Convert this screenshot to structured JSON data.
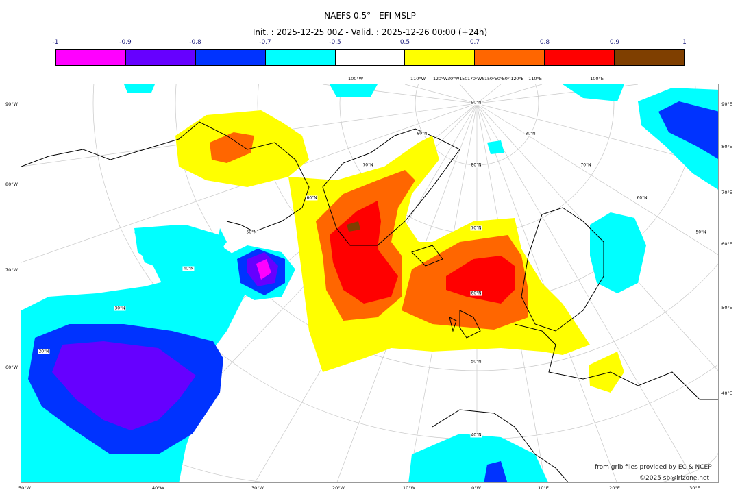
{
  "title": "NAEFS 0.5° - EFI MSLP",
  "subtitle": "Init. : 2025-12-25 00Z - Valid. : 2025-12-26 00:00 (+24h)",
  "colorbar": {
    "ticks": [
      "-1",
      "-0.9",
      "-0.8",
      "-0.7",
      "-0.5",
      "0.5",
      "0.7",
      "0.8",
      "0.9",
      "1"
    ],
    "colors": [
      "#ff00ff",
      "#6600ff",
      "#0033ff",
      "#00ffff",
      "#ffffff",
      "#ffff00",
      "#ff6600",
      "#ff0000",
      "#7f3f00"
    ]
  },
  "axes": {
    "left": [
      "90°W",
      "80°W",
      "70°W",
      "60°W"
    ],
    "right": [
      "90°E",
      "80°E",
      "70°E",
      "60°E",
      "50°E",
      "40°E"
    ],
    "bottom": [
      "50°W",
      "40°W",
      "30°W",
      "20°W",
      "10°W",
      "0°W",
      "10°E",
      "20°E",
      "30°E"
    ],
    "top": [
      "100°W",
      "110°W",
      "120°W30°W150170°W€150°E0°E0°I120°E",
      "110°E",
      "100°E"
    ]
  },
  "grid_labels": [
    "90°N",
    "80°N",
    "70°N",
    "60°N",
    "50°N",
    "40°N",
    "30°N",
    "20°N",
    "80°N",
    "70°N",
    "60°N",
    "50°N",
    "40°N",
    "80°N",
    "70°N",
    "60°N",
    "50°N"
  ],
  "credits": {
    "source": "from grib files provided by EC & NCEP",
    "copyright": "©2025 sb@irizone.net"
  }
}
